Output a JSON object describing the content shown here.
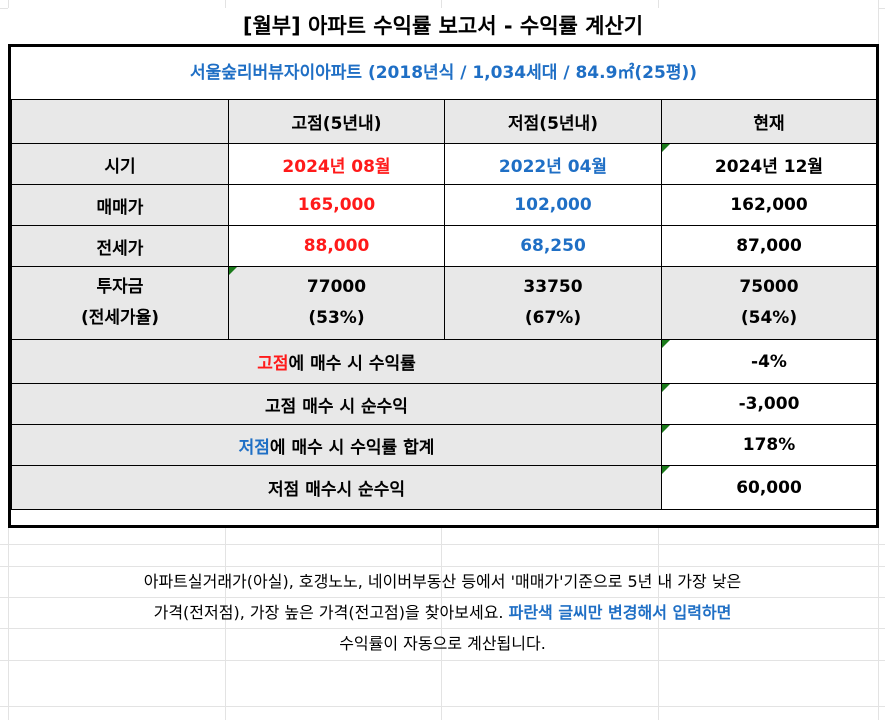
{
  "title": "[월부] 아파트 수익률 보고서 - 수익률 계산기",
  "subtitle": "서울숲리버뷰자이아파트 (2018년식 / 1,034세대 / 84.9㎡(25평))",
  "columns": {
    "high": "고점(5년내)",
    "low": "저점(5년내)",
    "now": "현재"
  },
  "rows": {
    "period": {
      "label": "시기",
      "high": "2024년 08월",
      "low": "2022년 04월",
      "now": "2024년 12월"
    },
    "sale": {
      "label": "매매가",
      "high": "165,000",
      "low": "102,000",
      "now": "162,000"
    },
    "jeonse": {
      "label": "전세가",
      "high": "88,000",
      "low": "68,250",
      "now": "87,000"
    },
    "invest": {
      "label1": "투자금",
      "label2": "(전세가율)",
      "high1": "77000",
      "high2": "(53%)",
      "low1": "33750",
      "low2": "(67%)",
      "now1": "75000",
      "now2": "(54%)"
    }
  },
  "summary": {
    "high_return_prefix": "고점",
    "high_return_suffix": "에 매수 시 수익률",
    "high_return_value": "-4%",
    "high_net_label": "고점 매수 시 순수익",
    "high_net_value": "-3,000",
    "low_return_prefix": "저점",
    "low_return_suffix": "에 매수 시 수익률 합계",
    "low_return_value": "178%",
    "low_net_label": "저점 매수시 순수익",
    "low_net_value": "60,000"
  },
  "note": {
    "line1": "아파트실거래가(아실), 호갱노노, 네이버부동산 등에서 '매매가'기준으로 5년 내 가장 낮은",
    "line2_plain": "가격(전저점), 가장 높은 가격(전고점)을 찾아보세요. ",
    "line2_highlight": "파란색 글씨만 변경해서 입력하면",
    "line3": "수익률이 자동으로 계산됩니다."
  },
  "colors": {
    "red": "#ff1a1a",
    "blue": "#1f6fc5",
    "gray_fill": "#e8e8e8",
    "marker": "#1a7a1a"
  }
}
